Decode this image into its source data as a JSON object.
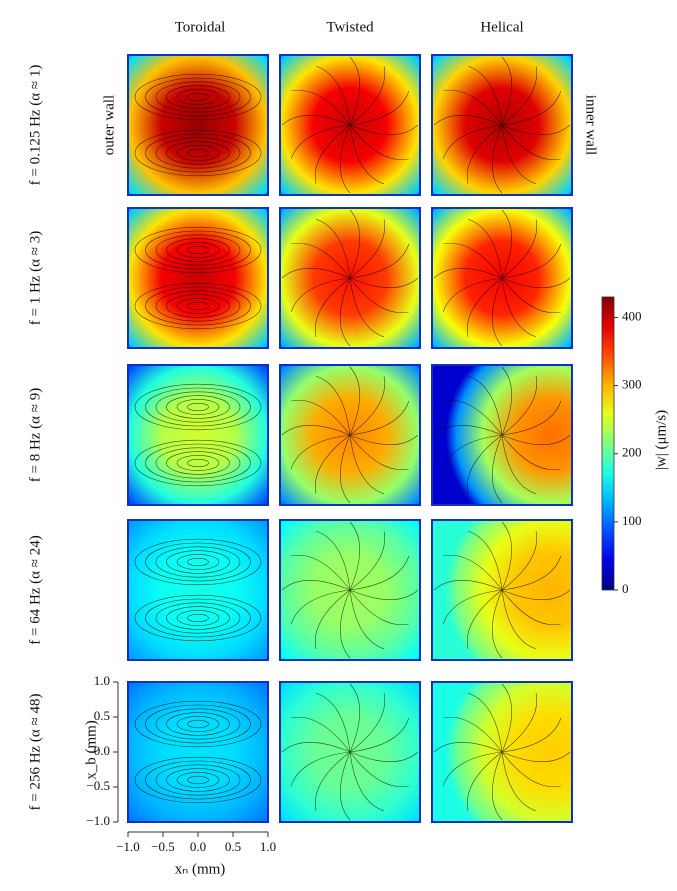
{
  "chart_data": {
    "type": "heatmap",
    "columns": [
      "Toroidal",
      "Twisted",
      "Helical"
    ],
    "rows": [
      "f = 0.125 Hz (α ≈ 1)",
      "f = 1 Hz (α ≈ 3)",
      "f = 8 Hz (α ≈ 9)",
      "f = 64 Hz (α ≈ 24)",
      "f = 256 Hz (α ≈ 48)"
    ],
    "annotations": [
      "outer wall",
      "inner wall"
    ],
    "values": [
      [
        420,
        400,
        410
      ],
      [
        400,
        370,
        380
      ],
      [
        250,
        320,
        330
      ],
      [
        170,
        230,
        300
      ],
      [
        150,
        210,
        290
      ]
    ],
    "colorbar": {
      "label": "|w| (μm/s)",
      "lim": [
        0,
        430
      ],
      "ticks": [
        0,
        100,
        200,
        300,
        400
      ]
    },
    "xlabel": "xₙ (mm)",
    "ylabel": "x_b (mm)",
    "xlim": [
      -1,
      1
    ],
    "ylim": [
      -1,
      1
    ],
    "xticks": [
      {
        "value": -1,
        "label": "−1.0"
      },
      {
        "value": -0.5,
        "label": "−0.5"
      },
      {
        "value": 0,
        "label": "0.0"
      },
      0.5,
      {
        "value": 1,
        "label": "1.0"
      }
    ],
    "yticks": [
      {
        "value": -1,
        "label": "−1.0"
      },
      {
        "value": -0.5,
        "label": "−0.5"
      },
      {
        "value": 0,
        "label": "0.0"
      },
      0.5,
      {
        "value": 1,
        "label": "1.0"
      }
    ]
  }
}
